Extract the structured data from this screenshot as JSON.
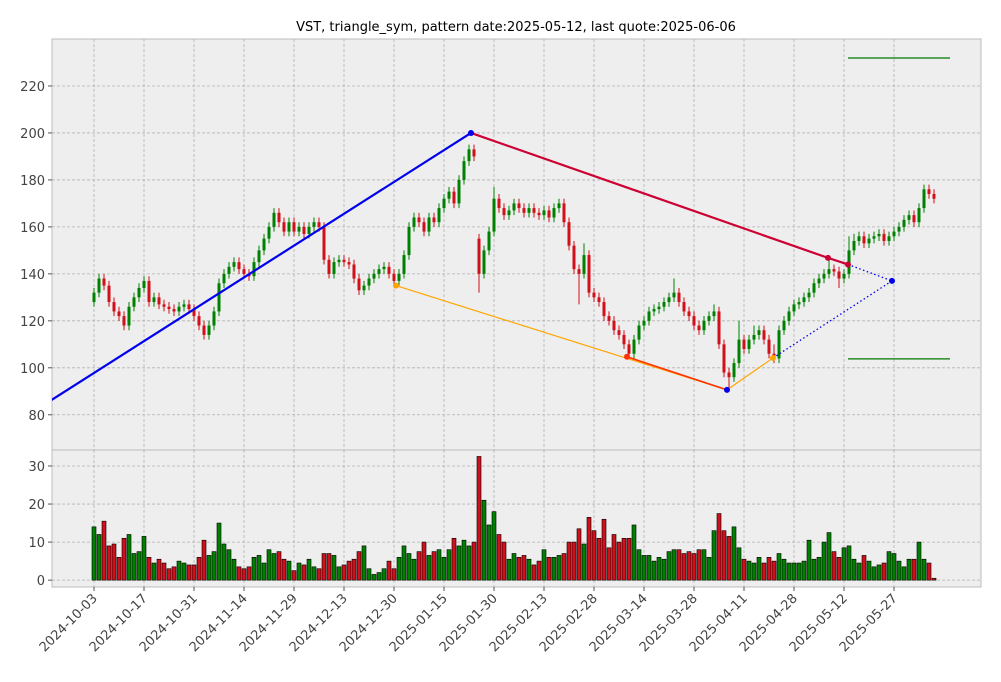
{
  "chart_data": {
    "type": "candlestick",
    "title": "VST, triangle_sym, pattern date:2025-05-12, last quote:2025-06-06",
    "categories": [
      "2024-10-03",
      null,
      null,
      null,
      null,
      null,
      null,
      null,
      null,
      null,
      "2024-10-17",
      null,
      null,
      null,
      null,
      null,
      null,
      null,
      null,
      null,
      "2024-10-31",
      null,
      null,
      null,
      null,
      null,
      null,
      null,
      null,
      null,
      "2024-11-14",
      null,
      null,
      null,
      null,
      null,
      null,
      null,
      null,
      null,
      "2024-11-29",
      null,
      null,
      null,
      null,
      null,
      null,
      null,
      null,
      null,
      "2024-12-13",
      null,
      null,
      null,
      null,
      null,
      null,
      null,
      null,
      null,
      "2024-12-30",
      null,
      null,
      null,
      null,
      null,
      null,
      null,
      null,
      null,
      "2025-01-15",
      null,
      null,
      null,
      null,
      null,
      null,
      null,
      null,
      null,
      "2025-01-30",
      null,
      null,
      null,
      null,
      null,
      null,
      null,
      null,
      null,
      "2025-02-13",
      null,
      null,
      null,
      null,
      null,
      null,
      null,
      null,
      null,
      "2025-02-28",
      null,
      null,
      null,
      null,
      null,
      null,
      null,
      null,
      null,
      "2025-03-14",
      null,
      null,
      null,
      null,
      null,
      null,
      null,
      null,
      null,
      "2025-03-28",
      null,
      null,
      null,
      null,
      null,
      null,
      null,
      null,
      null,
      "2025-04-11",
      null,
      null,
      null,
      null,
      null,
      null,
      null,
      null,
      null,
      "2025-04-28",
      null,
      null,
      null,
      null,
      null,
      null,
      null,
      null,
      null,
      "2025-05-12",
      null,
      null,
      null,
      null,
      null,
      null,
      null,
      null,
      null,
      "2025-05-27",
      null,
      null,
      null,
      null,
      null,
      null,
      null,
      null
    ],
    "open": [
      128,
      132,
      138,
      135,
      128,
      124,
      122,
      118,
      126,
      130,
      134,
      137,
      128,
      130,
      127,
      126,
      125,
      124,
      126,
      127,
      125,
      122,
      118,
      114,
      118,
      124,
      136,
      140,
      143,
      145,
      142,
      140,
      139,
      145,
      150,
      155,
      160,
      166,
      162,
      158,
      162,
      158,
      160,
      157,
      160,
      162,
      160,
      146,
      140,
      145,
      146,
      145,
      144,
      138,
      133,
      135,
      138,
      140,
      142,
      143,
      140,
      137,
      140,
      148,
      160,
      164,
      162,
      158,
      164,
      162,
      168,
      172,
      175,
      170,
      180,
      188,
      193,
      155,
      140,
      150,
      158,
      172,
      168,
      165,
      167,
      170,
      168,
      166,
      168,
      166,
      165,
      167,
      164,
      168,
      170,
      162,
      152,
      142,
      140,
      148,
      132,
      130,
      128,
      122,
      120,
      116,
      114,
      110,
      106,
      112,
      118,
      120,
      124,
      125,
      126,
      128,
      130,
      132,
      128,
      124,
      122,
      118,
      116,
      120,
      122,
      124,
      110,
      98,
      96,
      102,
      112,
      108,
      112,
      114,
      116,
      112,
      106,
      104,
      116,
      120,
      124,
      127,
      128,
      130,
      132,
      136,
      138,
      140,
      142,
      141,
      138,
      140,
      150,
      154,
      156,
      153,
      155,
      156,
      157,
      154,
      156,
      158,
      160,
      163,
      165,
      162,
      168,
      176,
      174
    ],
    "high": [
      134,
      140,
      140,
      137,
      130,
      126,
      124,
      128,
      132,
      136,
      139,
      139,
      132,
      132,
      129,
      128,
      127,
      128,
      129,
      129,
      127,
      124,
      120,
      120,
      126,
      138,
      142,
      145,
      147,
      147,
      144,
      142,
      147,
      152,
      157,
      162,
      168,
      168,
      164,
      164,
      164,
      162,
      162,
      162,
      164,
      164,
      162,
      148,
      147,
      148,
      148,
      147,
      146,
      140,
      137,
      140,
      142,
      144,
      145,
      145,
      142,
      142,
      150,
      162,
      166,
      166,
      164,
      166,
      166,
      170,
      174,
      177,
      177,
      182,
      190,
      195,
      195,
      157,
      152,
      160,
      177,
      174,
      170,
      169,
      172,
      172,
      170,
      170,
      170,
      168,
      169,
      169,
      170,
      172,
      172,
      164,
      154,
      144,
      153,
      150,
      134,
      132,
      130,
      124,
      122,
      118,
      116,
      112,
      114,
      120,
      122,
      126,
      127,
      128,
      130,
      132,
      138,
      134,
      130,
      126,
      124,
      120,
      122,
      124,
      127,
      126,
      112,
      100,
      104,
      120,
      114,
      114,
      118,
      118,
      118,
      114,
      110,
      118,
      122,
      126,
      129,
      130,
      132,
      134,
      138,
      140,
      142,
      147,
      144,
      143,
      142,
      156,
      157,
      158,
      158,
      157,
      158,
      159,
      159,
      158,
      160,
      162,
      165,
      167,
      167,
      170,
      178,
      178,
      176
    ],
    "low": [
      126,
      130,
      133,
      126,
      122,
      120,
      116,
      116,
      124,
      128,
      132,
      126,
      126,
      125,
      124,
      123,
      122,
      122,
      124,
      123,
      120,
      116,
      112,
      112,
      116,
      122,
      134,
      138,
      141,
      140,
      138,
      137,
      137,
      143,
      148,
      153,
      158,
      160,
      156,
      156,
      156,
      156,
      155,
      155,
      158,
      158,
      144,
      138,
      138,
      143,
      143,
      142,
      136,
      131,
      131,
      133,
      136,
      138,
      140,
      138,
      135,
      135,
      138,
      146,
      158,
      160,
      156,
      156,
      160,
      160,
      166,
      170,
      168,
      168,
      178,
      186,
      188,
      132,
      138,
      148,
      156,
      166,
      163,
      163,
      165,
      166,
      164,
      164,
      164,
      163,
      163,
      162,
      162,
      166,
      160,
      150,
      140,
      127,
      138,
      130,
      128,
      126,
      120,
      118,
      114,
      112,
      108,
      104,
      104,
      110,
      116,
      118,
      122,
      123,
      124,
      126,
      128,
      126,
      122,
      120,
      116,
      114,
      114,
      118,
      120,
      108,
      96,
      90,
      94,
      100,
      106,
      106,
      110,
      112,
      110,
      104,
      102,
      102,
      114,
      118,
      122,
      125,
      126,
      128,
      130,
      134,
      136,
      138,
      139,
      134,
      136,
      138,
      148,
      152,
      151,
      151,
      153,
      154,
      152,
      152,
      154,
      156,
      158,
      161,
      160,
      160,
      166,
      172,
      170
    ],
    "close": [
      132,
      138,
      135,
      128,
      124,
      122,
      118,
      126,
      130,
      134,
      137,
      128,
      130,
      127,
      126,
      125,
      124,
      126,
      127,
      125,
      122,
      118,
      114,
      118,
      124,
      136,
      140,
      143,
      145,
      142,
      140,
      139,
      145,
      150,
      155,
      160,
      166,
      162,
      158,
      162,
      158,
      160,
      157,
      160,
      162,
      160,
      146,
      140,
      145,
      146,
      145,
      144,
      138,
      133,
      135,
      138,
      140,
      142,
      143,
      140,
      137,
      140,
      148,
      160,
      164,
      162,
      158,
      164,
      162,
      168,
      172,
      175,
      170,
      180,
      188,
      193,
      190,
      140,
      150,
      158,
      172,
      168,
      165,
      167,
      170,
      168,
      166,
      168,
      166,
      165,
      167,
      164,
      168,
      170,
      162,
      152,
      142,
      140,
      148,
      132,
      130,
      128,
      122,
      120,
      116,
      114,
      110,
      106,
      112,
      118,
      120,
      124,
      125,
      126,
      128,
      130,
      132,
      128,
      124,
      122,
      118,
      116,
      120,
      122,
      124,
      110,
      98,
      96,
      102,
      112,
      108,
      112,
      114,
      116,
      112,
      106,
      104,
      116,
      120,
      124,
      127,
      128,
      130,
      132,
      136,
      138,
      140,
      142,
      141,
      138,
      140,
      150,
      154,
      156,
      153,
      155,
      156,
      157,
      154,
      156,
      158,
      160,
      163,
      165,
      162,
      168,
      176,
      174,
      172
    ],
    "volume": [
      14,
      12,
      15.5,
      9,
      9.5,
      6,
      11,
      12,
      7,
      7.5,
      11.5,
      6,
      4.5,
      5.5,
      4.5,
      3,
      3.5,
      5,
      4.5,
      4,
      4,
      6,
      10.5,
      6.5,
      7.5,
      15,
      9.5,
      8,
      5.5,
      3.5,
      3,
      3.5,
      6,
      6.5,
      4.5,
      8,
      7,
      7.5,
      5.5,
      5,
      2.5,
      4.5,
      4,
      5.5,
      3.5,
      3,
      7,
      7,
      6.5,
      3.5,
      4,
      5,
      5.5,
      7.5,
      9,
      3,
      1.5,
      2,
      3,
      5,
      3,
      6,
      9,
      7,
      5.5,
      7.5,
      10,
      6.5,
      7.5,
      8,
      6,
      8,
      11,
      9,
      10.5,
      9,
      10,
      32.5,
      21,
      14.5,
      18,
      12,
      10,
      5.5,
      7,
      6,
      6.5,
      5.5,
      4,
      5,
      8,
      6,
      6,
      6.5,
      7,
      10,
      10,
      13.5,
      9.5,
      16.5,
      13,
      11,
      16,
      8.5,
      12,
      10,
      11,
      11,
      14.5,
      8,
      6.5,
      6.5,
      5,
      6,
      5.5,
      7.5,
      8,
      8,
      7,
      7.5,
      7,
      8,
      8,
      6,
      13,
      17.5,
      13,
      11.5,
      14,
      8.5,
      5.5,
      5,
      4.5,
      6,
      4.5,
      6,
      5,
      7,
      5.5,
      4.5,
      4.5,
      4.5,
      5,
      10.5,
      5.5,
      6,
      10,
      12.5,
      7.5,
      6,
      8.5,
      9,
      5.5,
      4.5,
      6.5,
      5,
      3.5,
      4,
      4.5,
      7.5,
      7,
      5,
      3.5,
      5.5,
      5.5,
      10,
      5.5,
      4.5,
      0.5
    ],
    "up_color": "#008000",
    "down_color": "#d0101a",
    "xlim": [
      -8.4,
      177.4
    ],
    "ylim": [
      65,
      240
    ],
    "yticks": [
      80,
      100,
      120,
      140,
      160,
      180,
      200,
      220
    ],
    "volume_ylim": [
      -1.8,
      34.2
    ],
    "volume_yticks": [
      0,
      10,
      20,
      30
    ],
    "grid": true,
    "lines": [
      {
        "color": "#0000ee",
        "width": 2.2,
        "dash": "solid",
        "x": [
          -9,
          75.4
        ],
        "y": [
          85.6,
          200
        ]
      },
      {
        "color": "#cc0033",
        "width": 2.2,
        "dash": "solid",
        "x": [
          75.4,
          146.8,
          150.8
        ],
        "y": [
          200,
          146.8,
          144
        ]
      },
      {
        "color": "#0000ee",
        "width": 1.3,
        "dash": "dotted",
        "x": [
          150.8,
          159.6
        ],
        "y": [
          144,
          137
        ]
      },
      {
        "color": "#ffa500",
        "width": 1.2,
        "dash": "solid",
        "x": [
          60.4,
          126.6
        ],
        "y": [
          135,
          90.6
        ]
      },
      {
        "color": "#ff3300",
        "width": 1.6,
        "dash": "solid",
        "x": [
          106.6,
          126.6
        ],
        "y": [
          104.7,
          90.6
        ]
      },
      {
        "color": "#ffa500",
        "width": 1.2,
        "dash": "solid",
        "x": [
          126.6,
          135.8
        ],
        "y": [
          90.6,
          104.2
        ]
      },
      {
        "color": "#0000ee",
        "width": 1.3,
        "dash": "dotted",
        "x": [
          135.8,
          159.6
        ],
        "y": [
          104.2,
          137
        ]
      },
      {
        "color": "#007700",
        "width": 1.2,
        "dash": "solid",
        "x": [
          150.8,
          171.2
        ],
        "y": [
          231.9,
          231.9
        ]
      },
      {
        "color": "#007700",
        "width": 1.2,
        "dash": "solid",
        "x": [
          150.8,
          171.2
        ],
        "y": [
          103.8,
          103.8
        ]
      }
    ],
    "points": [
      {
        "x": 75.4,
        "y": 200,
        "color": "#0000ee"
      },
      {
        "x": 146.8,
        "y": 146.8,
        "color": "#cc0033"
      },
      {
        "x": 150.8,
        "y": 144,
        "color": "#cc0033"
      },
      {
        "x": 159.6,
        "y": 137,
        "color": "#0000ee"
      },
      {
        "x": 60.4,
        "y": 135,
        "color": "#ffa500"
      },
      {
        "x": 106.6,
        "y": 104.7,
        "color": "#ff3300"
      },
      {
        "x": 126.6,
        "y": 90.6,
        "color": "#0000ee"
      },
      {
        "x": 135.8,
        "y": 104.2,
        "color": "#ffa500"
      }
    ]
  }
}
